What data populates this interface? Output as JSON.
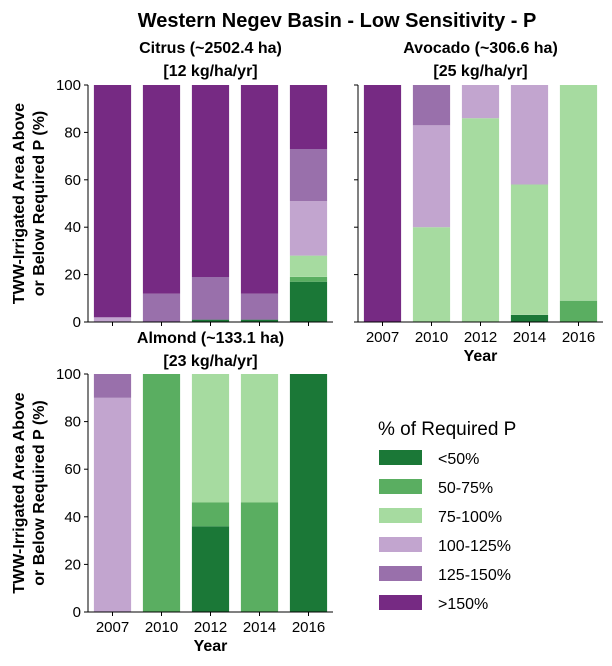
{
  "title": "Western Negev Basin - Low Sensitivity - P",
  "legend": {
    "title": "% of Required P",
    "placement": "bottom-right",
    "items": [
      {
        "label": "<50%",
        "color": "#1b7837"
      },
      {
        "label": "50-75%",
        "color": "#5aae61"
      },
      {
        "label": "75-100%",
        "color": "#a6dba0"
      },
      {
        "label": "100-125%",
        "color": "#c2a5cf"
      },
      {
        "label": "125-150%",
        "color": "#9970ab"
      },
      {
        "label": ">150%",
        "color": "#762a83"
      }
    ]
  },
  "chart_data": [
    {
      "type": "bar",
      "stacked": true,
      "title_line1": "Citrus (~2502.4 ha)",
      "title_line2": "[12 kg/ha/yr]",
      "ylabel_line1": "TWW-Irrigated Area Above",
      "ylabel_line2": "or Below Required P (%)",
      "xlabel": "",
      "categories": [
        "2007",
        "2010",
        "2012",
        "2014",
        "2016"
      ],
      "show_xticklabels": false,
      "show_yticklabels": true,
      "ylim": [
        0,
        100
      ],
      "yticks": [
        "0",
        "20",
        "40",
        "60",
        "80",
        "100"
      ],
      "series": [
        {
          "name": "<50%",
          "values": [
            0,
            0,
            1,
            1,
            17
          ]
        },
        {
          "name": "50-75%",
          "values": [
            0,
            0,
            0,
            0,
            2
          ]
        },
        {
          "name": "75-100%",
          "values": [
            0,
            0,
            0,
            0,
            9
          ]
        },
        {
          "name": "100-125%",
          "values": [
            2,
            0,
            0,
            0,
            23
          ]
        },
        {
          "name": "125-150%",
          "values": [
            0,
            12,
            18,
            11,
            22
          ]
        },
        {
          "name": ">150%",
          "values": [
            98,
            88,
            81,
            88,
            27
          ]
        }
      ]
    },
    {
      "type": "bar",
      "stacked": true,
      "title_line1": "Avocado (~306.6 ha)",
      "title_line2": "[25 kg/ha/yr]",
      "ylabel_line1": "",
      "ylabel_line2": "",
      "xlabel": "Year",
      "categories": [
        "2007",
        "2010",
        "2012",
        "2014",
        "2016"
      ],
      "show_xticklabels": true,
      "show_yticklabels": false,
      "ylim": [
        0,
        100
      ],
      "yticks": [
        "0",
        "20",
        "40",
        "60",
        "80",
        "100"
      ],
      "series": [
        {
          "name": "<50%",
          "values": [
            0,
            0,
            0,
            3,
            0
          ]
        },
        {
          "name": "50-75%",
          "values": [
            0,
            0,
            0,
            0,
            9
          ]
        },
        {
          "name": "75-100%",
          "values": [
            0,
            40,
            86,
            55,
            91
          ]
        },
        {
          "name": "100-125%",
          "values": [
            0,
            43,
            14,
            42,
            0
          ]
        },
        {
          "name": "125-150%",
          "values": [
            0,
            17,
            0,
            0,
            0
          ]
        },
        {
          "name": ">150%",
          "values": [
            100,
            0,
            0,
            0,
            0
          ]
        }
      ]
    },
    {
      "type": "bar",
      "stacked": true,
      "title_line1": "Almond (~133.1 ha)",
      "title_line2": "[23 kg/ha/yr]",
      "ylabel_line1": "TWW-Irrigated Area Above",
      "ylabel_line2": "or Below Required P (%)",
      "xlabel": "Year",
      "categories": [
        "2007",
        "2010",
        "2012",
        "2014",
        "2016"
      ],
      "show_xticklabels": true,
      "show_yticklabels": true,
      "ylim": [
        0,
        100
      ],
      "yticks": [
        "0",
        "20",
        "40",
        "60",
        "80",
        "100"
      ],
      "series": [
        {
          "name": "<50%",
          "values": [
            0,
            0,
            36,
            0,
            100
          ]
        },
        {
          "name": "50-75%",
          "values": [
            0,
            100,
            10,
            46,
            0
          ]
        },
        {
          "name": "75-100%",
          "values": [
            0,
            0,
            54,
            54,
            0
          ]
        },
        {
          "name": "100-125%",
          "values": [
            90,
            0,
            0,
            0,
            0
          ]
        },
        {
          "name": "125-150%",
          "values": [
            10,
            0,
            0,
            0,
            0
          ]
        },
        {
          "name": ">150%",
          "values": [
            0,
            0,
            0,
            0,
            0
          ]
        }
      ]
    }
  ]
}
